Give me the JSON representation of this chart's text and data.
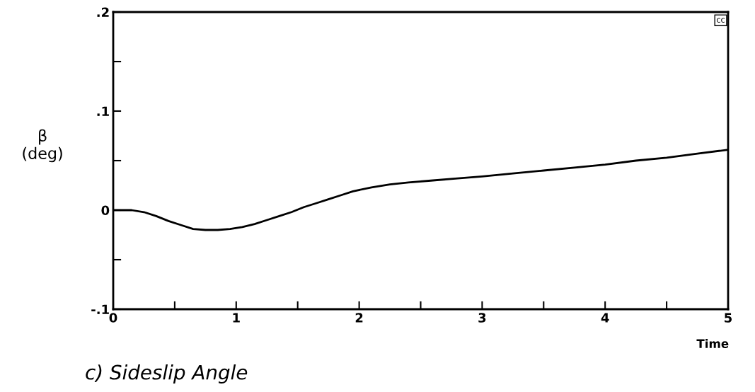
{
  "chart_data": {
    "type": "line",
    "title": "c) Sideslip Angle",
    "xlabel": "Time",
    "ylabel": "β\n(deg)",
    "annotations": [
      "cc"
    ],
    "x": [
      0,
      0.15,
      0.25,
      0.35,
      0.45,
      0.55,
      0.65,
      0.75,
      0.85,
      0.95,
      1.05,
      1.15,
      1.25,
      1.35,
      1.45,
      1.55,
      1.65,
      1.75,
      1.85,
      1.95,
      2.1,
      2.25,
      2.4,
      2.6,
      2.8,
      3.0,
      3.25,
      3.5,
      3.75,
      4.0,
      4.25,
      4.5,
      4.75,
      5.0
    ],
    "series": [
      {
        "color": "#000000",
        "values": [
          0,
          0,
          -0.002,
          -0.006,
          -0.011,
          -0.015,
          -0.019,
          -0.02,
          -0.02,
          -0.019,
          -0.017,
          -0.014,
          -0.01,
          -0.006,
          -0.002,
          0.003,
          0.007,
          0.011,
          0.015,
          0.019,
          0.023,
          0.026,
          0.028,
          0.03,
          0.032,
          0.034,
          0.037,
          0.04,
          0.043,
          0.046,
          0.05,
          0.053,
          0.057,
          0.061
        ]
      }
    ],
    "xlim": [
      0,
      5
    ],
    "ylim": [
      -0.1,
      0.2
    ],
    "xticks": [
      0,
      {
        "value": 0.5,
        "label": null
      },
      1,
      {
        "value": 1.5,
        "label": null
      },
      2,
      {
        "value": 2.5,
        "label": null
      },
      3,
      {
        "value": 3.5,
        "label": null
      },
      4,
      {
        "value": 4.5,
        "label": null
      },
      5
    ],
    "yticks": [
      {
        "value": -0.1,
        "label": "-.1"
      },
      {
        "value": -0.05,
        "label": null
      },
      0,
      {
        "value": 0.05,
        "label": null
      },
      {
        "value": 0.1,
        "label": ".1"
      },
      {
        "value": 0.15,
        "label": null
      },
      {
        "value": 0.2,
        "label": ".2"
      }
    ],
    "grid": false,
    "legend": false,
    "line_style": "solid",
    "marker": "none"
  }
}
